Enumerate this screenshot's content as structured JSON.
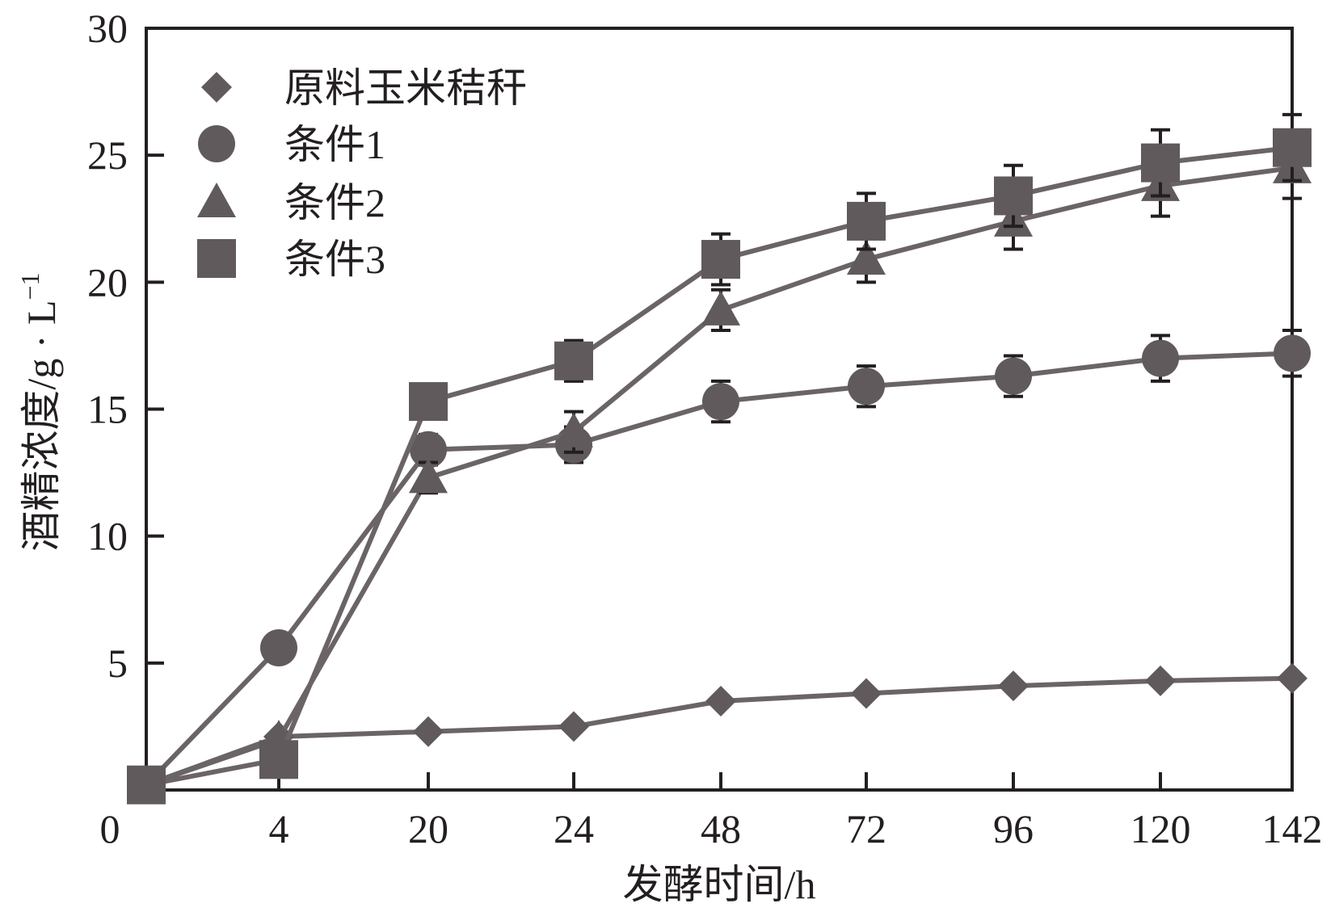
{
  "chart_data": {
    "type": "line",
    "xlabel": "发酵时间/h",
    "ylabel": "酒精浓度/g · L",
    "ylabel_superscript": "−1",
    "origin_label": "0",
    "categories": [
      "0",
      "4",
      "20",
      "24",
      "48",
      "72",
      "96",
      "120",
      "142"
    ],
    "x_tick_labels": [
      "4",
      "20",
      "24",
      "48",
      "72",
      "96",
      "120",
      "142"
    ],
    "y_ticks": [
      "5",
      "10",
      "15",
      "20",
      "25",
      "30"
    ],
    "ylim": [
      0,
      30
    ],
    "grid": false,
    "legend_position": "top-left",
    "line_color": "#6b6466",
    "marker_color": "#605a5c",
    "series": [
      {
        "name": "原料玉米秸秆",
        "marker": "diamond",
        "values": [
          0.2,
          2.1,
          2.3,
          2.5,
          3.5,
          3.8,
          4.1,
          4.3,
          4.4
        ],
        "errors": [
          0,
          0,
          0,
          0,
          0,
          0,
          0,
          0,
          0
        ]
      },
      {
        "name": "条件1",
        "marker": "circle",
        "values": [
          0.2,
          5.6,
          13.4,
          13.6,
          15.3,
          15.9,
          16.3,
          17.0,
          17.2
        ],
        "errors": [
          0,
          0,
          0.6,
          0.7,
          0.8,
          0.8,
          0.8,
          0.9,
          0.9
        ]
      },
      {
        "name": "条件2",
        "marker": "triangle",
        "values": [
          0.2,
          2.0,
          12.3,
          14.1,
          18.9,
          20.9,
          22.4,
          23.8,
          24.5
        ],
        "errors": [
          0,
          0,
          0.6,
          0.8,
          0.8,
          0.9,
          1.1,
          1.2,
          1.2
        ]
      },
      {
        "name": "条件3",
        "marker": "square",
        "values": [
          0.2,
          1.2,
          15.3,
          16.9,
          20.9,
          22.4,
          23.4,
          24.7,
          25.3
        ],
        "errors": [
          0,
          0,
          0.6,
          0.8,
          1.0,
          1.1,
          1.2,
          1.3,
          1.3
        ]
      }
    ]
  }
}
